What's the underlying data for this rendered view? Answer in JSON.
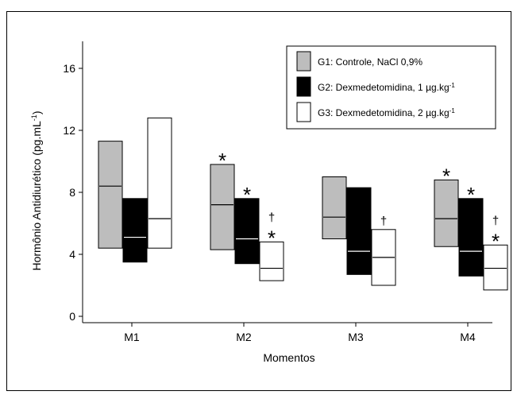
{
  "chart_data": {
    "type": "box",
    "title": "",
    "xlabel": "Momentos",
    "ylabel": "Hormônio Antidiurético (pg.mL",
    "ylabel_sup": "-1",
    "ylabel_end": ")",
    "ylim": [
      0,
      16
    ],
    "yticks": [
      "0",
      "4",
      "8",
      "12",
      "16"
    ],
    "categories": [
      "M1",
      "M2",
      "M3",
      "M4"
    ],
    "grid": false,
    "legend_position": "top-right",
    "series": [
      {
        "name": "G1: Controle, NaCl 0,9%",
        "name_sup": "",
        "fill": "#bdbdbd",
        "median_color": "#000000",
        "boxes": [
          {
            "low": 4.4,
            "median": 8.4,
            "high": 11.3
          },
          {
            "low": 4.3,
            "median": 7.2,
            "high": 9.8
          },
          {
            "low": 5.0,
            "median": 6.4,
            "high": 9.0
          },
          {
            "low": 4.5,
            "median": 6.3,
            "high": 8.8
          }
        ]
      },
      {
        "name": "G2: Dexmedetomidina, 1 µg.kg",
        "name_sup": "-1",
        "fill": "#000000",
        "median_color": "#ffffff",
        "boxes": [
          {
            "low": 3.5,
            "median": 5.1,
            "high": 7.6
          },
          {
            "low": 3.4,
            "median": 5.0,
            "high": 7.6
          },
          {
            "low": 2.7,
            "median": 4.2,
            "high": 8.3
          },
          {
            "low": 2.6,
            "median": 4.2,
            "high": 7.6
          }
        ]
      },
      {
        "name": "G3: Dexmedetomidina, 2 µg.kg",
        "name_sup": "-1",
        "fill": "#ffffff",
        "median_color": "#000000",
        "boxes": [
          {
            "low": 4.4,
            "median": 6.3,
            "high": 12.8
          },
          {
            "low": 2.3,
            "median": 3.1,
            "high": 4.8
          },
          {
            "low": 2.0,
            "median": 3.8,
            "high": 5.6
          },
          {
            "low": 1.7,
            "median": 3.1,
            "high": 4.6
          }
        ]
      }
    ],
    "annotations": [
      {
        "category": 1,
        "series": 0,
        "symbols": [
          "*"
        ]
      },
      {
        "category": 1,
        "series": 1,
        "symbols": [
          "*"
        ]
      },
      {
        "category": 1,
        "series": 2,
        "symbols": [
          "†",
          "*"
        ]
      },
      {
        "category": 2,
        "series": 2,
        "symbols": [
          "†"
        ]
      },
      {
        "category": 3,
        "series": 0,
        "symbols": [
          "*"
        ]
      },
      {
        "category": 3,
        "series": 1,
        "symbols": [
          "*"
        ]
      },
      {
        "category": 3,
        "series": 2,
        "symbols": [
          "†",
          "*"
        ]
      }
    ]
  }
}
